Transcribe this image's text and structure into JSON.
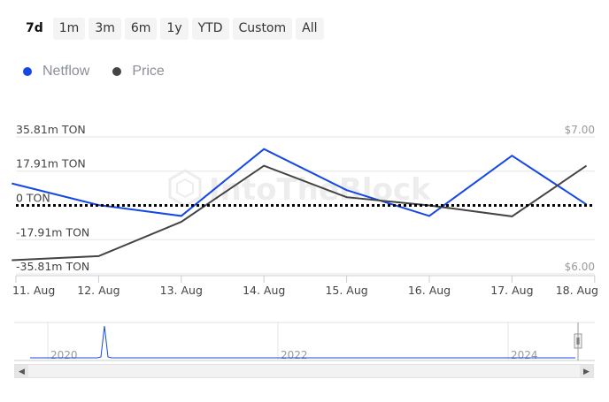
{
  "range_selector": {
    "buttons": [
      "7d",
      "1m",
      "3m",
      "6m",
      "1y",
      "YTD",
      "Custom",
      "All"
    ],
    "active": "7d"
  },
  "legend": [
    {
      "label": "Netflow",
      "color": "#1447e6"
    },
    {
      "label": "Price",
      "color": "#444444"
    }
  ],
  "watermark": "IntoTheBlock",
  "chart_data": {
    "type": "line",
    "title": "",
    "x": [
      "11. Aug",
      "12. Aug",
      "13. Aug",
      "14. Aug",
      "15. Aug",
      "16. Aug",
      "17. Aug",
      "18. Aug"
    ],
    "x_start_offset_day": -0.05,
    "series": [
      {
        "name": "Netflow",
        "axis": "left",
        "color": "#1447e6",
        "points": [
          [
            -0.05,
            11.5
          ],
          [
            1.0,
            0.2
          ],
          [
            2.0,
            -5.5
          ],
          [
            3.0,
            29.5
          ],
          [
            4.0,
            8.0
          ],
          [
            5.0,
            -5.5
          ],
          [
            6.0,
            26.0
          ],
          [
            6.9,
            0.5
          ]
        ]
      },
      {
        "name": "Price",
        "axis": "right",
        "color": "#444444",
        "points": [
          [
            -0.05,
            6.1
          ],
          [
            1.0,
            6.13
          ],
          [
            2.0,
            6.38
          ],
          [
            3.0,
            6.79
          ],
          [
            4.0,
            6.56
          ],
          [
            5.0,
            6.5
          ],
          [
            6.0,
            6.42
          ],
          [
            6.9,
            6.79
          ]
        ]
      }
    ],
    "y_left": {
      "ticks": [
        "35.81m TON",
        "17.91m TON",
        "0 TON",
        "-17.91m TON",
        "-35.81m TON"
      ],
      "values": [
        35.81,
        17.91,
        0,
        -17.91,
        -35.81
      ],
      "ylim": [
        -35.81,
        35.81
      ]
    },
    "y_right": {
      "ticks": [
        "$7.00",
        "$6.00"
      ],
      "values": [
        7.0,
        6.0
      ],
      "ylim": [
        6.0,
        7.0
      ]
    },
    "zero_line": "dotted",
    "grid": "horizontal",
    "navigator": {
      "year_labels": [
        "2020",
        "2022",
        "2024"
      ]
    }
  }
}
